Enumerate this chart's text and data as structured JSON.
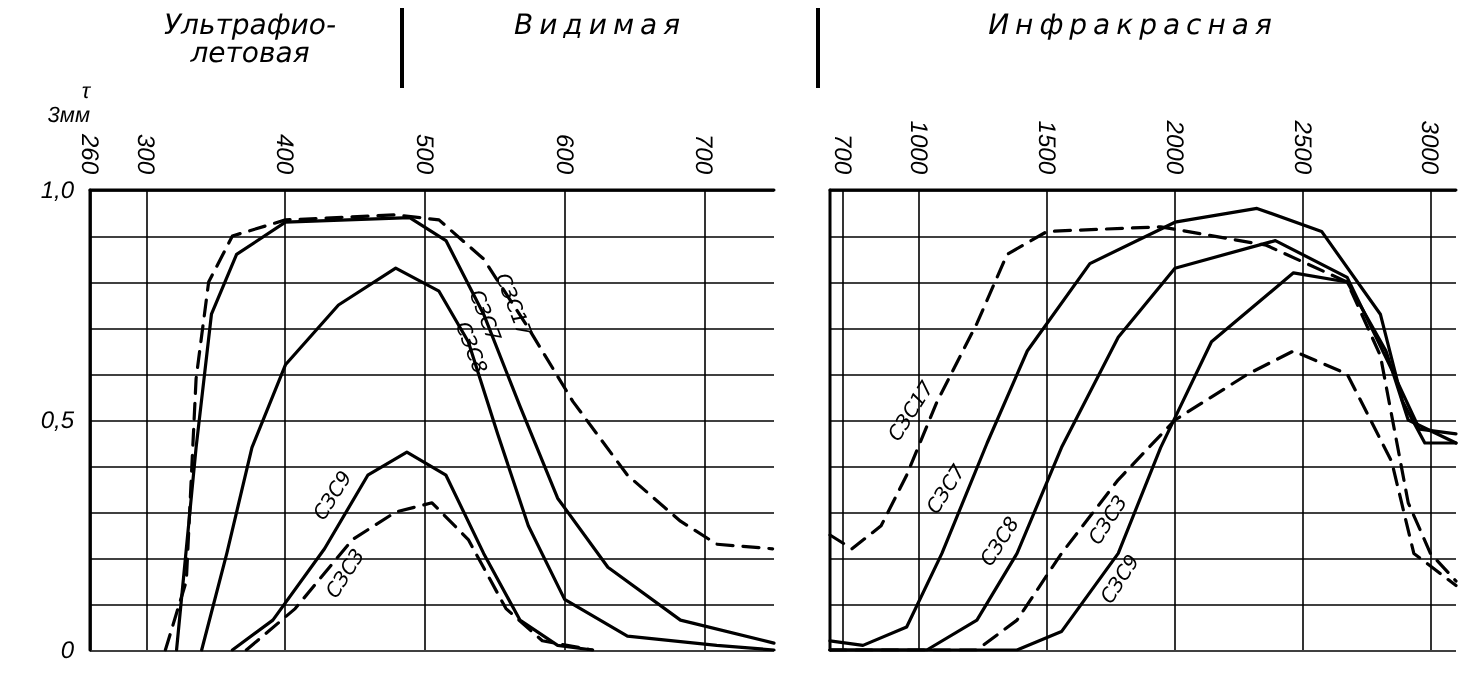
{
  "chart_data": [
    {
      "type": "line",
      "ylabel": "τ\n3мм",
      "annotations": [
        "Ультрафио-\nлетовая",
        "Видимая"
      ],
      "xlim": [
        260,
        750
      ],
      "xticks": [
        260,
        300,
        400,
        500,
        600,
        700
      ],
      "ylim": [
        0,
        1
      ],
      "yticks": [
        {
          "value": 0,
          "label": "0"
        },
        {
          "value": 0.1,
          "label": null
        },
        {
          "value": 0.2,
          "label": null
        },
        {
          "value": 0.3,
          "label": null
        },
        {
          "value": 0.4,
          "label": null
        },
        {
          "value": 0.5,
          "label": "0,5"
        },
        {
          "value": 0.6,
          "label": null
        },
        {
          "value": 0.7,
          "label": null
        },
        {
          "value": 0.8,
          "label": null
        },
        {
          "value": 0.9,
          "label": null
        },
        {
          "value": 1,
          "label": "1,0"
        }
      ],
      "grid": true,
      "marker": "none",
      "series": [
        {
          "name": "СЗС17",
          "color": "#000000",
          "line_style": "dashed",
          "x": [
            314,
            329,
            336,
            345,
            362,
            400,
            479,
            510,
            542,
            574,
            606,
            645,
            683,
            709,
            749
          ],
          "values": [
            0,
            0.15,
            0.59,
            0.8,
            0.9,
            0.935,
            0.946,
            0.935,
            0.85,
            0.7,
            0.54,
            0.38,
            0.28,
            0.23,
            0.22
          ]
        },
        {
          "name": "СЗС7",
          "color": "#000000",
          "line_style": "solid",
          "x": [
            322,
            336,
            347,
            365,
            400,
            489,
            515,
            542,
            568,
            595,
            631,
            683,
            750
          ],
          "values": [
            0,
            0.44,
            0.73,
            0.86,
            0.93,
            0.94,
            0.89,
            0.73,
            0.53,
            0.33,
            0.18,
            0.065,
            0.015
          ]
        },
        {
          "name": "СЗС8",
          "color": "#000000",
          "line_style": "solid",
          "x": [
            340,
            358,
            376,
            400,
            438,
            479,
            510,
            531,
            552,
            574,
            600,
            645,
            709,
            750
          ],
          "values": [
            0,
            0.21,
            0.44,
            0.62,
            0.75,
            0.83,
            0.78,
            0.67,
            0.47,
            0.27,
            0.11,
            0.03,
            0.01,
            0
          ]
        },
        {
          "name": "СЗС9",
          "color": "#000000",
          "line_style": "solid",
          "x": [
            362,
            391,
            428,
            459,
            487,
            515,
            542,
            568,
            595,
            620
          ],
          "values": [
            0,
            0.065,
            0.22,
            0.38,
            0.43,
            0.38,
            0.21,
            0.065,
            0.01,
            0
          ]
        },
        {
          "name": "СЗС3",
          "color": "#000000",
          "line_style": "dashed",
          "x": [
            372,
            407,
            448,
            479,
            505,
            531,
            558,
            584,
            620
          ],
          "values": [
            0,
            0.09,
            0.24,
            0.3,
            0.32,
            0.24,
            0.09,
            0.02,
            0
          ]
        }
      ]
    },
    {
      "type": "line",
      "annotations": [
        "Инфракрасная"
      ],
      "xlim": [
        650,
        3100
      ],
      "xticks": [
        700,
        1000,
        1500,
        2000,
        2500,
        3000
      ],
      "ylim": [
        0,
        1
      ],
      "yticks": [
        0,
        0.1,
        0.2,
        0.3,
        0.4,
        0.5,
        0.6,
        0.7,
        0.8,
        0.9,
        1
      ],
      "tick_labels": "x",
      "grid": true,
      "marker": "none",
      "series": [
        {
          "name": "СЗС17",
          "color": "#000000",
          "line_style": "dashed",
          "x": [
            650,
            736,
            850,
            950,
            1069,
            1225,
            1343,
            1500,
            1944,
            2357,
            2674,
            2804,
            2913,
            3000,
            3100
          ],
          "values": [
            0.25,
            0.22,
            0.27,
            0.38,
            0.54,
            0.71,
            0.86,
            0.91,
            0.92,
            0.88,
            0.8,
            0.64,
            0.32,
            0.21,
            0.15
          ]
        },
        {
          "name": "СЗС7",
          "color": "#000000",
          "line_style": "solid",
          "x": [
            650,
            779,
            950,
            1088,
            1265,
            1422,
            1667,
            2000,
            2321,
            2574,
            2804,
            2891,
            2978,
            3100
          ],
          "values": [
            0.02,
            0.01,
            0.05,
            0.21,
            0.45,
            0.65,
            0.84,
            0.93,
            0.96,
            0.91,
            0.73,
            0.54,
            0.45,
            0.45
          ]
        },
        {
          "name": "СЗС8",
          "color": "#000000",
          "line_style": "solid",
          "x": [
            650,
            1029,
            1225,
            1382,
            1556,
            1778,
            2000,
            2393,
            2674,
            2848,
            2957,
            3100
          ],
          "values": [
            0,
            0,
            0.065,
            0.21,
            0.44,
            0.68,
            0.83,
            0.89,
            0.81,
            0.61,
            0.48,
            0.47
          ]
        },
        {
          "name": "СЗС9",
          "color": "#000000",
          "line_style": "solid",
          "x": [
            650,
            1382,
            1556,
            1778,
            1944,
            2143,
            2464,
            2674,
            2826,
            2913,
            3100
          ],
          "values": [
            0,
            0,
            0.04,
            0.21,
            0.44,
            0.67,
            0.82,
            0.8,
            0.65,
            0.5,
            0.45
          ]
        },
        {
          "name": "СЗС3",
          "color": "#000000",
          "line_style": "dashed",
          "x": [
            650,
            1225,
            1382,
            1556,
            1778,
            2000,
            2286,
            2464,
            2674,
            2848,
            2935,
            3100
          ],
          "values": [
            0,
            0,
            0.065,
            0.21,
            0.37,
            0.5,
            0.6,
            0.65,
            0.6,
            0.41,
            0.21,
            0.14
          ]
        }
      ]
    }
  ]
}
